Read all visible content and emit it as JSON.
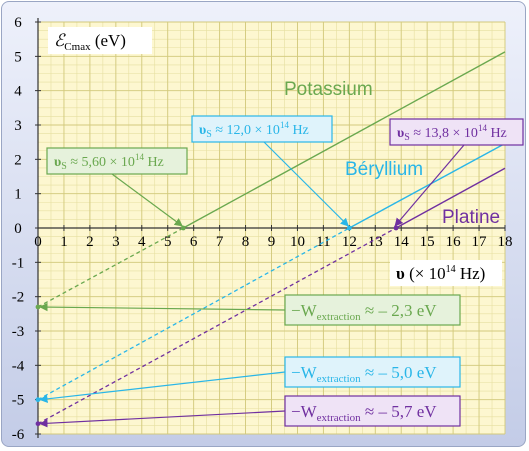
{
  "chart_data": {
    "type": "line",
    "xlabel_symbol": "υ",
    "xlabel_unit": " (× 10",
    "xlabel_exp": "14",
    "xlabel_tail": " Hz)",
    "ylabel_symbol": "ℰ",
    "ylabel_sub": "Cmax",
    "ylabel_unit": " (eV)",
    "xlim": [
      0,
      18
    ],
    "ylim": [
      -6,
      6
    ],
    "x_ticks": [
      "0",
      "1",
      "2",
      "3",
      "4",
      "5",
      "6",
      "7",
      "8",
      "9",
      "10",
      "11",
      "12",
      "13",
      "14",
      "15",
      "16",
      "17",
      "18"
    ],
    "y_ticks": [
      "6",
      "5",
      "4",
      "3",
      "2",
      "1",
      "0",
      "-1",
      "-2",
      "-3",
      "-4",
      "-5",
      "-6"
    ],
    "grid": true,
    "series": [
      {
        "name": "Potassium",
        "color": "#6aa84f",
        "threshold": {
          "sym": "υ",
          "sub": "S",
          "value": "≈ 5,60 × 10",
          "exp": "14",
          "unit": " Hz"
        },
        "threshold_x": 5.6,
        "intercept_y": -2.3,
        "end": [
          18,
          5.13
        ],
        "work": {
          "prefix": "−W",
          "sub": "extraction",
          "value": " ≈ – 2,3 eV"
        }
      },
      {
        "name": "Béryllium",
        "color": "#29b6e8",
        "threshold": {
          "sym": "υ",
          "sub": "S",
          "value": "≈ 12,0 × 10",
          "exp": "14",
          "unit": " Hz"
        },
        "threshold_x": 12.0,
        "intercept_y": -5.0,
        "end": [
          18,
          2.46
        ],
        "work": {
          "prefix": "−W",
          "sub": "extraction",
          "value": " ≈ – 5,0 eV"
        }
      },
      {
        "name": "Platine",
        "color": "#7030a0",
        "threshold": {
          "sym": "υ",
          "sub": "S",
          "value": "≈ 13,8 × 10",
          "exp": "14",
          "unit": " Hz"
        },
        "threshold_x": 13.8,
        "intercept_y": -5.7,
        "end": [
          18,
          1.74
        ],
        "work": {
          "prefix": "−W",
          "sub": "extraction",
          "value": " ≈ – 5,7 eV"
        }
      }
    ]
  }
}
